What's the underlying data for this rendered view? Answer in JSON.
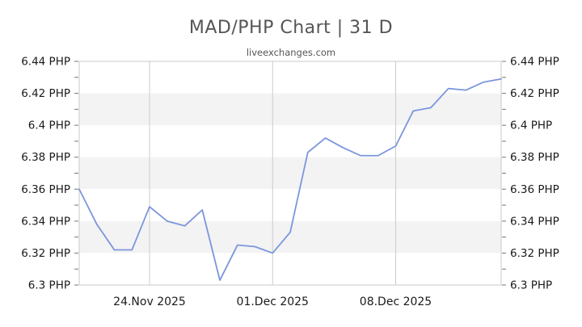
{
  "header": {
    "title": "MAD/PHP Chart | 31 D",
    "subtitle": "liveexchanges.com"
  },
  "chart_data": {
    "type": "line",
    "title": "MAD/PHP Chart | 31 D",
    "subtitle": "liveexchanges.com",
    "pair": "MAD/PHP",
    "x": [
      "20.Nov 2025",
      "21.Nov 2025",
      "22.Nov 2025",
      "23.Nov 2025",
      "24.Nov 2025",
      "25.Nov 2025",
      "26.Nov 2025",
      "27.Nov 2025",
      "28.Nov 2025",
      "29.Nov 2025",
      "30.Nov 2025",
      "01.Dec 2025",
      "02.Dec 2025",
      "03.Dec 2025",
      "04.Dec 2025",
      "05.Dec 2025",
      "06.Dec 2025",
      "07.Dec 2025",
      "08.Dec 2025",
      "09.Dec 2025",
      "10.Dec 2025",
      "11.Dec 2025",
      "12.Dec 2025",
      "13.Dec 2025",
      "14.Dec 2025"
    ],
    "series": [
      {
        "name": "MAD/PHP",
        "values": [
          6.36,
          6.338,
          6.322,
          6.322,
          6.349,
          6.34,
          6.337,
          6.347,
          6.303,
          6.325,
          6.324,
          6.32,
          6.333,
          6.383,
          6.392,
          6.386,
          6.381,
          6.381,
          6.387,
          6.409,
          6.411,
          6.423,
          6.422,
          6.427,
          6.429
        ]
      }
    ],
    "ylim": [
      6.3,
      6.44
    ],
    "y_major_step": 0.02,
    "y_minor_step": 0.01,
    "y_axis_labels": [
      "6.44 PHP",
      "6.42 PHP",
      "6.4 PHP",
      "6.38 PHP",
      "6.36 PHP",
      "6.34 PHP",
      "6.32 PHP",
      "6.3 PHP"
    ],
    "x_axis_labels": [
      {
        "label": "24.Nov 2025",
        "index": 4
      },
      {
        "label": "01.Dec 2025",
        "index": 11
      },
      {
        "label": "08.Dec 2025",
        "index": 18
      }
    ],
    "legend": "none",
    "grid": "vertical gridlines at labeled dates; horizontal alternating shaded bands every 0.02",
    "colors": {
      "line": "#7b96dd",
      "band": "#f3f3f3",
      "grid": "#cccccc",
      "border": "#c9c9c9",
      "tick": "#777777",
      "axis_label": "#1a1a1a",
      "title": "#555555",
      "subtitle": "#555555"
    }
  }
}
